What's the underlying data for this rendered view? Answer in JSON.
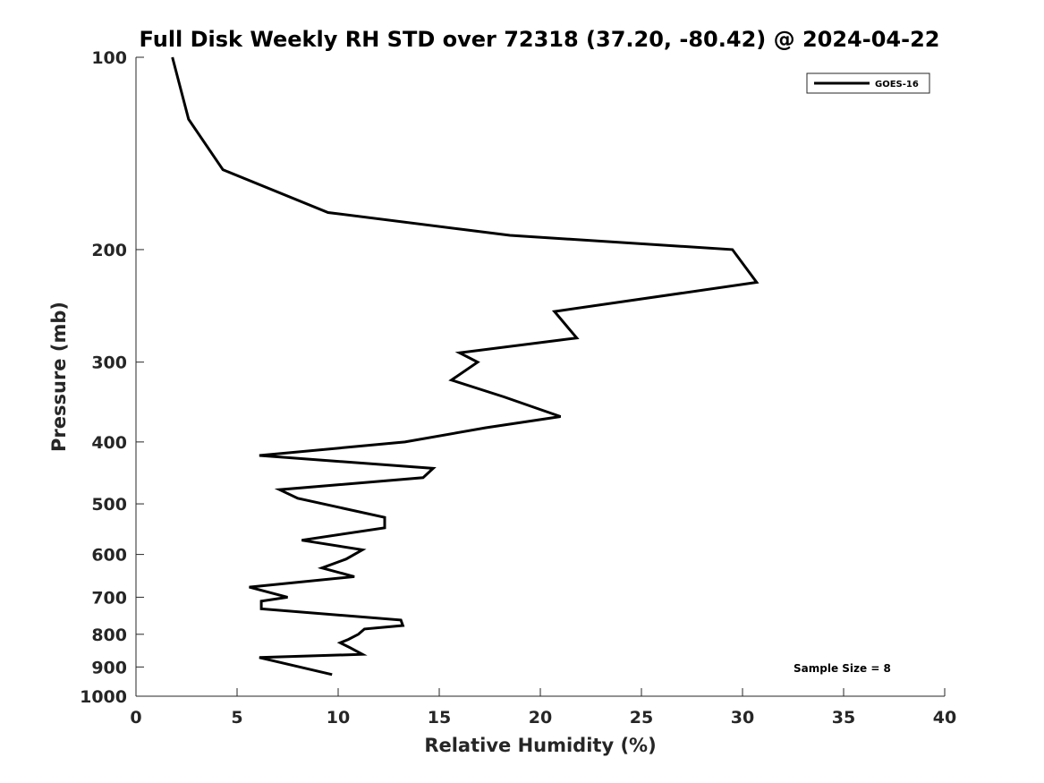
{
  "chart_data": {
    "type": "line",
    "title": "Full Disk Weekly RH STD over 72318 (37.20, -80.42) @ 2024-04-22",
    "xlabel": "Relative Humidity (%)",
    "ylabel": "Pressure (mb)",
    "xlim": [
      0,
      40
    ],
    "ylim": [
      1000,
      100
    ],
    "yscale": "log",
    "y_reversed": true,
    "xticks": [
      0,
      5,
      10,
      15,
      20,
      25,
      30,
      35,
      40
    ],
    "yticks": [
      100,
      200,
      300,
      400,
      500,
      600,
      700,
      800,
      900,
      1000
    ],
    "grid": false,
    "legend_position": "top-right",
    "annotation": "Sample Size = 8",
    "series": [
      {
        "name": "GOES-16",
        "color": "#000000",
        "points": [
          [
            1.8,
            100
          ],
          [
            2.6,
            125
          ],
          [
            4.3,
            150
          ],
          [
            9.5,
            175
          ],
          [
            18.5,
            190
          ],
          [
            29.5,
            200
          ],
          [
            30.7,
            225
          ],
          [
            20.7,
            250
          ],
          [
            21.8,
            275
          ],
          [
            16.0,
            290
          ],
          [
            16.9,
            300
          ],
          [
            15.6,
            320
          ],
          [
            18.2,
            340
          ],
          [
            21.0,
            365
          ],
          [
            17.3,
            380
          ],
          [
            13.3,
            400
          ],
          [
            6.1,
            420
          ],
          [
            14.7,
            440
          ],
          [
            14.2,
            455
          ],
          [
            7.1,
            475
          ],
          [
            8.0,
            490
          ],
          [
            12.3,
            525
          ],
          [
            12.3,
            545
          ],
          [
            8.2,
            570
          ],
          [
            11.2,
            590
          ],
          [
            10.4,
            610
          ],
          [
            9.2,
            630
          ],
          [
            10.8,
            650
          ],
          [
            5.6,
            675
          ],
          [
            7.5,
            700
          ],
          [
            6.2,
            710
          ],
          [
            6.2,
            730
          ],
          [
            13.1,
            760
          ],
          [
            13.2,
            775
          ],
          [
            11.3,
            785
          ],
          [
            11.0,
            800
          ],
          [
            10.5,
            815
          ],
          [
            10.1,
            825
          ],
          [
            10.6,
            840
          ],
          [
            11.2,
            860
          ],
          [
            6.1,
            870
          ],
          [
            9.7,
            925
          ]
        ]
      }
    ]
  }
}
